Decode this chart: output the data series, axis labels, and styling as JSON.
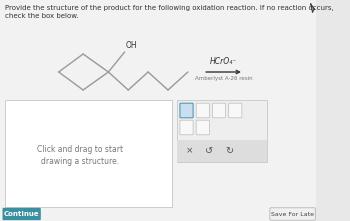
{
  "bg_color": "#e8e8e8",
  "panel_color": "#f2f2f2",
  "white": "#ffffff",
  "title_text": "Provide the structure of the product for the following oxidation reaction. If no reaction occurs, check the box below.",
  "title_fontsize": 5.0,
  "reagent_top": "HCrO₄⁻",
  "reagent_bottom": "Amberlyst A-26 resin",
  "draw_box_text": "Click and drag to start\ndrawing a structure.",
  "continue_label": "Continue",
  "save_label": "Save For Late",
  "mol_color": "#999999",
  "arrow_color": "#333333",
  "box_bg": "#ffffff",
  "box_border": "#cccccc",
  "toolbar_bg": "#eeeeee",
  "toolbar_border": "#cccccc",
  "continue_bg": "#3a8fa0",
  "continue_text": "#ffffff",
  "title_color": "#333333",
  "reagent_color": "#333333",
  "text_color": "#555555"
}
